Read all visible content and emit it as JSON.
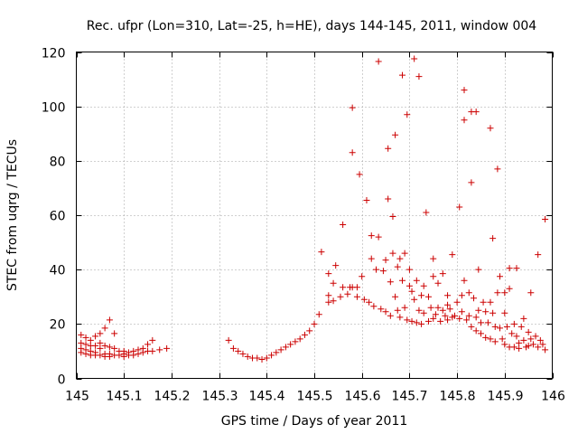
{
  "chart_data": {
    "type": "scatter",
    "title": "Rec. ufpr (Lon=310, Lat=-25, h=HE), days 144-145, 2011, window 004",
    "xlabel": "GPS time / Days of year 2011",
    "ylabel": "STEC from uqrg / TECUs",
    "xlim": [
      145,
      146
    ],
    "ylim": [
      0,
      120
    ],
    "xticks": [
      145,
      145.1,
      145.2,
      145.3,
      145.4,
      145.5,
      145.6,
      145.7,
      145.8,
      145.9,
      146
    ],
    "xtick_labels": [
      "145",
      "145.1",
      "145.2",
      "145.3",
      "145.4",
      "145.5",
      "145.6",
      "145.7",
      "145.8",
      "145.9",
      "146"
    ],
    "yticks": [
      0,
      20,
      40,
      60,
      80,
      100,
      120
    ],
    "ytick_labels": [
      "0",
      "20",
      "40",
      "60",
      "80",
      "100",
      "120"
    ],
    "grid": true,
    "marker": "plus",
    "color": "#cc0000",
    "points": [
      [
        145.01,
        16.0
      ],
      [
        145.01,
        13.0
      ],
      [
        145.01,
        11.0
      ],
      [
        145.01,
        9.5
      ],
      [
        145.02,
        15.0
      ],
      [
        145.02,
        12.5
      ],
      [
        145.02,
        10.5
      ],
      [
        145.02,
        9.0
      ],
      [
        145.03,
        14.0
      ],
      [
        145.03,
        12.0
      ],
      [
        145.03,
        10.0
      ],
      [
        145.03,
        8.5
      ],
      [
        145.04,
        15.5
      ],
      [
        145.04,
        12.0
      ],
      [
        145.04,
        9.5
      ],
      [
        145.04,
        8.5
      ],
      [
        145.05,
        16.5
      ],
      [
        145.05,
        13.0
      ],
      [
        145.05,
        11.0
      ],
      [
        145.05,
        8.5
      ],
      [
        145.06,
        18.5
      ],
      [
        145.06,
        12.0
      ],
      [
        145.06,
        9.0
      ],
      [
        145.06,
        8.0
      ],
      [
        145.07,
        21.5
      ],
      [
        145.07,
        11.5
      ],
      [
        145.07,
        9.0
      ],
      [
        145.07,
        8.0
      ],
      [
        145.08,
        16.5
      ],
      [
        145.08,
        11.0
      ],
      [
        145.08,
        8.5
      ],
      [
        145.09,
        10.0
      ],
      [
        145.09,
        8.5
      ],
      [
        145.1,
        10.0
      ],
      [
        145.1,
        9.0
      ],
      [
        145.1,
        8.0
      ],
      [
        145.11,
        9.5
      ],
      [
        145.11,
        8.5
      ],
      [
        145.12,
        10.0
      ],
      [
        145.12,
        8.5
      ],
      [
        145.13,
        10.5
      ],
      [
        145.13,
        9.0
      ],
      [
        145.14,
        11.0
      ],
      [
        145.14,
        9.5
      ],
      [
        145.15,
        12.5
      ],
      [
        145.15,
        10.0
      ],
      [
        145.16,
        14.0
      ],
      [
        145.16,
        10.0
      ],
      [
        145.175,
        10.5
      ],
      [
        145.19,
        11.0
      ],
      [
        145.32,
        14.0
      ],
      [
        145.33,
        11.0
      ],
      [
        145.34,
        10.0
      ],
      [
        145.35,
        9.0
      ],
      [
        145.36,
        8.0
      ],
      [
        145.37,
        7.5
      ],
      [
        145.38,
        7.5
      ],
      [
        145.39,
        7.0
      ],
      [
        145.4,
        7.5
      ],
      [
        145.41,
        8.5
      ],
      [
        145.42,
        9.5
      ],
      [
        145.43,
        10.5
      ],
      [
        145.44,
        11.5
      ],
      [
        145.45,
        12.5
      ],
      [
        145.46,
        13.5
      ],
      [
        145.47,
        14.5
      ],
      [
        145.48,
        16.0
      ],
      [
        145.49,
        17.5
      ],
      [
        145.5,
        20.0
      ],
      [
        145.51,
        23.5
      ],
      [
        145.515,
        46.5
      ],
      [
        145.53,
        28.0
      ],
      [
        145.53,
        30.5
      ],
      [
        145.53,
        38.5
      ],
      [
        145.54,
        28.5
      ],
      [
        145.54,
        35.0
      ],
      [
        145.545,
        41.5
      ],
      [
        145.555,
        30.0
      ],
      [
        145.56,
        33.5
      ],
      [
        145.56,
        56.5
      ],
      [
        145.57,
        31.0
      ],
      [
        145.575,
        33.5
      ],
      [
        145.58,
        33.5
      ],
      [
        145.58,
        83.0
      ],
      [
        145.58,
        99.5
      ],
      [
        145.59,
        30.0
      ],
      [
        145.59,
        33.5
      ],
      [
        145.595,
        75.0
      ],
      [
        145.6,
        37.5
      ],
      [
        145.605,
        29.0
      ],
      [
        145.61,
        65.5
      ],
      [
        145.615,
        28.0
      ],
      [
        145.62,
        44.0
      ],
      [
        145.62,
        52.5
      ],
      [
        145.625,
        26.5
      ],
      [
        145.63,
        40.0
      ],
      [
        145.635,
        52.0
      ],
      [
        145.635,
        116.5
      ],
      [
        145.64,
        25.5
      ],
      [
        145.645,
        39.5
      ],
      [
        145.65,
        24.5
      ],
      [
        145.65,
        43.5
      ],
      [
        145.655,
        66.0
      ],
      [
        145.655,
        84.5
      ],
      [
        145.66,
        35.5
      ],
      [
        145.66,
        23.0
      ],
      [
        145.665,
        46.0
      ],
      [
        145.665,
        59.5
      ],
      [
        145.67,
        30.0
      ],
      [
        145.67,
        89.5
      ],
      [
        145.675,
        41.0
      ],
      [
        145.675,
        25.0
      ],
      [
        145.68,
        22.5
      ],
      [
        145.68,
        44.0
      ],
      [
        145.685,
        111.5
      ],
      [
        145.685,
        36.0
      ],
      [
        145.69,
        46.0
      ],
      [
        145.69,
        26.0
      ],
      [
        145.695,
        21.5
      ],
      [
        145.695,
        97.0
      ],
      [
        145.7,
        40.0
      ],
      [
        145.7,
        34.0
      ],
      [
        145.705,
        21.0
      ],
      [
        145.705,
        32.0
      ],
      [
        145.71,
        117.5
      ],
      [
        145.71,
        29.0
      ],
      [
        145.715,
        20.5
      ],
      [
        145.715,
        36.0
      ],
      [
        145.72,
        111.0
      ],
      [
        145.72,
        25.0
      ],
      [
        145.725,
        30.5
      ],
      [
        145.725,
        20.0
      ],
      [
        145.73,
        24.0
      ],
      [
        145.73,
        34.0
      ],
      [
        145.735,
        61.0
      ],
      [
        145.74,
        21.0
      ],
      [
        145.74,
        30.0
      ],
      [
        145.745,
        26.0
      ],
      [
        145.75,
        44.0
      ],
      [
        145.75,
        37.5
      ],
      [
        145.75,
        22.0
      ],
      [
        145.755,
        23.5
      ],
      [
        145.76,
        35.0
      ],
      [
        145.76,
        26.0
      ],
      [
        145.765,
        21.0
      ],
      [
        145.77,
        38.5
      ],
      [
        145.77,
        25.0
      ],
      [
        145.775,
        23.0
      ],
      [
        145.78,
        30.5
      ],
      [
        145.78,
        27.0
      ],
      [
        145.78,
        21.5
      ],
      [
        145.785,
        25.5
      ],
      [
        145.79,
        45.5
      ],
      [
        145.79,
        22.5
      ],
      [
        145.795,
        23.0
      ],
      [
        145.8,
        28.0
      ],
      [
        145.805,
        63.0
      ],
      [
        145.805,
        22.0
      ],
      [
        145.81,
        30.5
      ],
      [
        145.81,
        24.5
      ],
      [
        145.815,
        106.0
      ],
      [
        145.815,
        95.0
      ],
      [
        145.815,
        36.0
      ],
      [
        145.82,
        21.5
      ],
      [
        145.825,
        31.5
      ],
      [
        145.825,
        23.0
      ],
      [
        145.83,
        98.0
      ],
      [
        145.83,
        72.0
      ],
      [
        145.83,
        19.0
      ],
      [
        145.835,
        29.5
      ],
      [
        145.84,
        98.0
      ],
      [
        145.84,
        22.5
      ],
      [
        145.84,
        17.5
      ],
      [
        145.845,
        40.0
      ],
      [
        145.845,
        25.0
      ],
      [
        145.85,
        20.5
      ],
      [
        145.85,
        16.5
      ],
      [
        145.855,
        28.0
      ],
      [
        145.86,
        24.5
      ],
      [
        145.86,
        15.0
      ],
      [
        145.865,
        20.5
      ],
      [
        145.87,
        92.0
      ],
      [
        145.87,
        28.0
      ],
      [
        145.87,
        14.5
      ],
      [
        145.875,
        51.5
      ],
      [
        145.875,
        24.0
      ],
      [
        145.88,
        19.0
      ],
      [
        145.88,
        13.5
      ],
      [
        145.885,
        77.0
      ],
      [
        145.885,
        31.5
      ],
      [
        145.89,
        37.5
      ],
      [
        145.89,
        18.5
      ],
      [
        145.895,
        14.5
      ],
      [
        145.9,
        31.5
      ],
      [
        145.9,
        24.0
      ],
      [
        145.9,
        12.5
      ],
      [
        145.905,
        19.0
      ],
      [
        145.91,
        33.0
      ],
      [
        145.91,
        40.5
      ],
      [
        145.91,
        11.5
      ],
      [
        145.915,
        16.5
      ],
      [
        145.92,
        20.0
      ],
      [
        145.92,
        11.5
      ],
      [
        145.925,
        40.5
      ],
      [
        145.925,
        15.5
      ],
      [
        145.93,
        13.0
      ],
      [
        145.93,
        11.0
      ],
      [
        145.935,
        19.0
      ],
      [
        145.94,
        22.0
      ],
      [
        145.94,
        14.0
      ],
      [
        145.945,
        11.5
      ],
      [
        145.95,
        17.0
      ],
      [
        145.95,
        12.0
      ],
      [
        145.955,
        31.5
      ],
      [
        145.955,
        14.5
      ],
      [
        145.96,
        12.5
      ],
      [
        145.965,
        15.5
      ],
      [
        145.97,
        45.5
      ],
      [
        145.97,
        11.5
      ],
      [
        145.975,
        14.0
      ],
      [
        145.98,
        12.5
      ],
      [
        145.985,
        58.5
      ],
      [
        145.985,
        10.5
      ]
    ]
  }
}
